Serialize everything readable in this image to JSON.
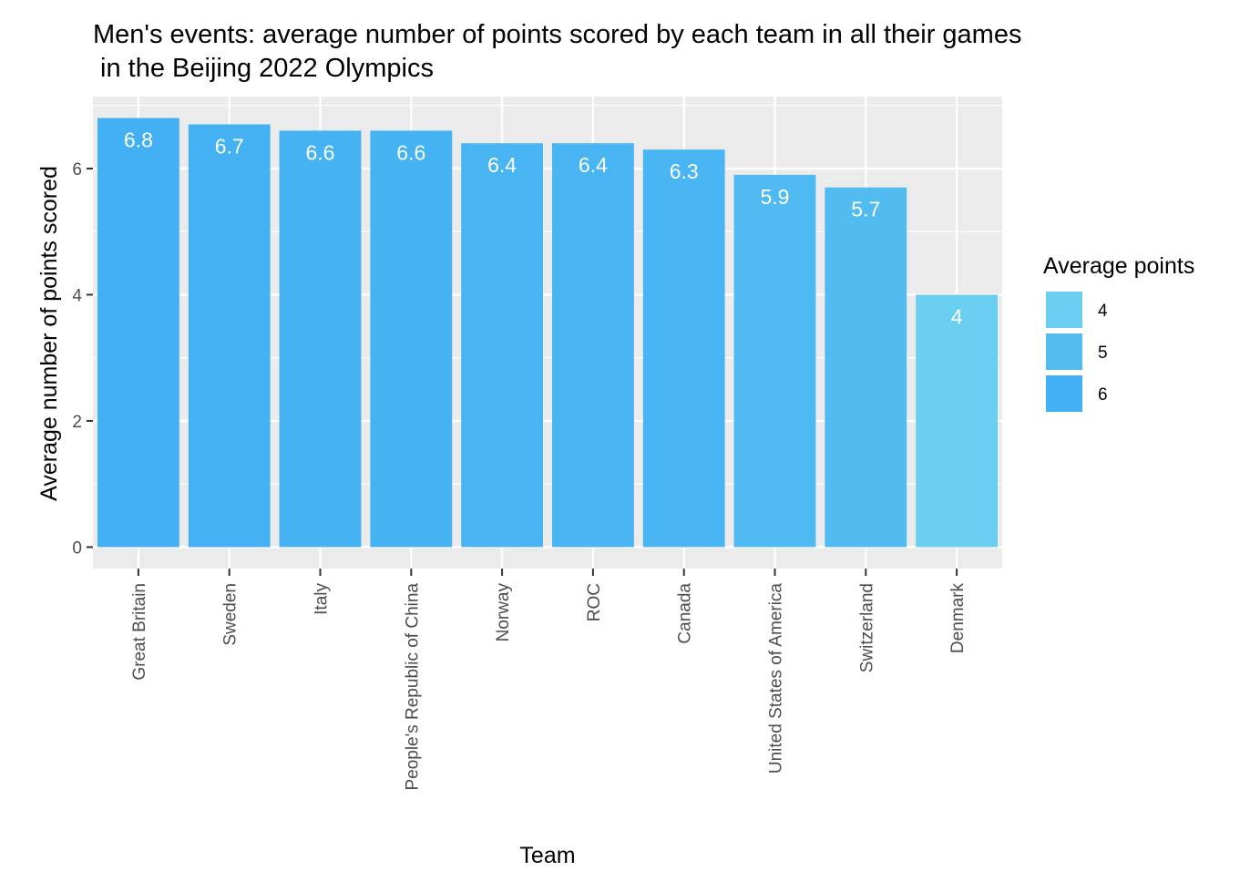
{
  "chart_data": {
    "type": "bar",
    "title": "Men's events: average number of points scored by each team in all their games",
    "subtitle": " in the Beijing 2022 Olympics",
    "xlabel": "Team",
    "ylabel": "Average number of points scored",
    "categories": [
      "Great Britain",
      "Sweden",
      "Italy",
      "People's Republic of China",
      "Norway",
      "ROC",
      "Canada",
      "United States of America",
      "Switzerland",
      "Denmark"
    ],
    "values": [
      6.8,
      6.7,
      6.6,
      6.6,
      6.4,
      6.4,
      6.3,
      5.9,
      5.7,
      4
    ],
    "data_labels": [
      "6.8",
      "6.7",
      "6.6",
      "6.6",
      "6.4",
      "6.4",
      "6.3",
      "5.9",
      "5.7",
      "4"
    ],
    "ylim": [
      -0.34,
      7.14
    ],
    "yticks": [
      0,
      2,
      4,
      6
    ],
    "ytick_labels": [
      "0",
      "2",
      "4",
      "6"
    ],
    "grid": true,
    "legend": {
      "title": "Average points",
      "placement": "right",
      "entries": [
        {
          "label": "4",
          "color": "#6ACEF0"
        },
        {
          "label": "5",
          "color": "#54BDF0"
        },
        {
          "label": "6",
          "color": "#42B0F2"
        }
      ]
    },
    "colors": {
      "panel_background": "#EBEBEB",
      "gridline": "#FFFFFF",
      "low": "#6ACEF0",
      "high": "#42B0F2"
    },
    "color_scale_range": [
      4,
      6.8
    ]
  }
}
